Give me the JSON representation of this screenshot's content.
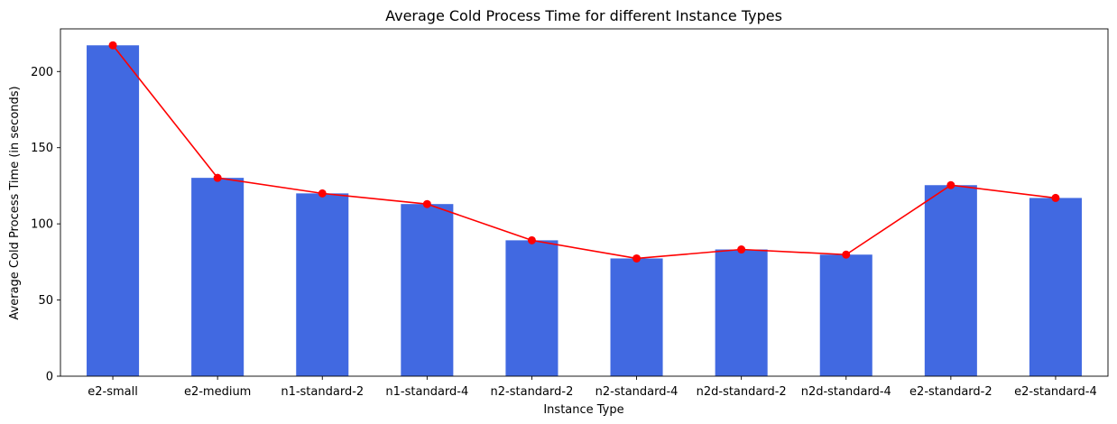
{
  "chart_data": {
    "type": "bar",
    "title": "Average Cold Process Time for different Instance Types",
    "xlabel": "Instance Type",
    "ylabel": "Average Cold Process Time (in seconds)",
    "categories": [
      "e2-small",
      "e2-medium",
      "n1-standard-2",
      "n1-standard-4",
      "n2-standard-2",
      "n2-standard-4",
      "n2d-standard-2",
      "n2d-standard-4",
      "e2-standard-2",
      "e2-standard-4"
    ],
    "series": [
      {
        "type": "bar",
        "color": "#4169e1",
        "values": [
          217.2,
          130.2,
          120.0,
          113.0,
          89.2,
          77.3,
          83.2,
          79.8,
          125.4,
          117.0
        ]
      },
      {
        "type": "line",
        "color": "#ff0000",
        "marker": "circle",
        "values": [
          217.2,
          130.2,
          120.0,
          113.0,
          89.2,
          77.3,
          83.2,
          79.8,
          125.4,
          117.0
        ]
      }
    ],
    "ylim": [
      0,
      228
    ],
    "yticks": [
      0,
      50,
      100,
      150,
      200
    ],
    "grid": false,
    "legend": "none"
  }
}
